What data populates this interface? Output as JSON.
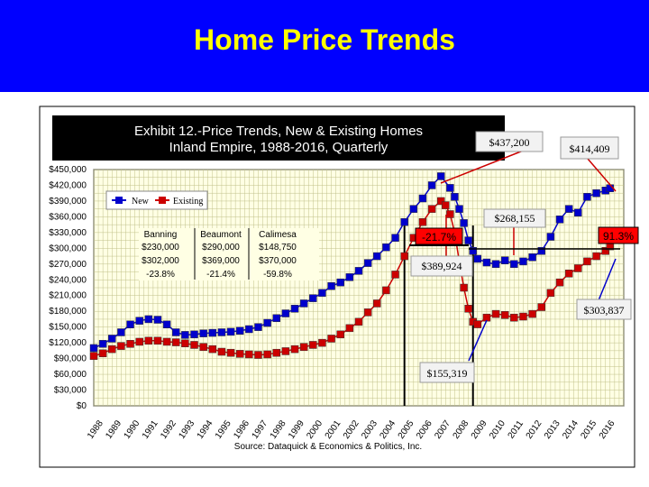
{
  "slide_title": "Home Price Trends",
  "colors": {
    "banner": "#0000ff",
    "title": "#ffff00",
    "new_series": "#0000cc",
    "existing_series": "#cc0000",
    "gridlines": "#b8b880"
  },
  "chart_data": {
    "type": "line",
    "title": "Exhibit 12.-Price Trends, New & Existing Homes",
    "subtitle": "Inland Empire, 1988-2016, Quarterly",
    "source": "Source: Dataquick & Economics & Politics, Inc.",
    "ylim": [
      0,
      450000
    ],
    "y_ticks": [
      {
        "value": 0,
        "label": "$0"
      },
      {
        "value": 30000,
        "label": "$30,000"
      },
      {
        "value": 60000,
        "label": "$60,000"
      },
      {
        "value": 90000,
        "label": "$90,000"
      },
      {
        "value": 120000,
        "label": "$120,000"
      },
      {
        "value": 150000,
        "label": "$150,000"
      },
      {
        "value": 180000,
        "label": "$180,000"
      },
      {
        "value": 210000,
        "label": "$210,000"
      },
      {
        "value": 240000,
        "label": "$240,000"
      },
      {
        "value": 270000,
        "label": "$270,000"
      },
      {
        "value": 300000,
        "label": "$300,000"
      },
      {
        "value": 330000,
        "label": "$330,000"
      },
      {
        "value": 360000,
        "label": "$360,000"
      },
      {
        "value": 390000,
        "label": "$390,000"
      },
      {
        "value": 420000,
        "label": "$420,000"
      },
      {
        "value": 450000,
        "label": "$450,000"
      }
    ],
    "xlim": [
      1988,
      2017
    ],
    "x_ticks": [
      "1988",
      "1989",
      "1990",
      "1991",
      "1992",
      "1993",
      "1994",
      "1995",
      "1996",
      "1997",
      "1998",
      "1999",
      "2000",
      "2001",
      "2002",
      "2003",
      "2004",
      "2005",
      "2006",
      "2007",
      "2008",
      "2009",
      "2010",
      "2011",
      "2012",
      "2013",
      "2014",
      "2015",
      "2016"
    ],
    "legend": {
      "placement": "top-left",
      "entries": [
        "New",
        "Existing"
      ]
    },
    "series": [
      {
        "name": "New",
        "color": "#0000cc",
        "points": [
          [
            1988.0,
            110000
          ],
          [
            1988.5,
            118000
          ],
          [
            1989.0,
            128000
          ],
          [
            1989.5,
            140000
          ],
          [
            1990.0,
            155000
          ],
          [
            1990.5,
            162000
          ],
          [
            1991.0,
            165000
          ],
          [
            1991.5,
            164000
          ],
          [
            1992.0,
            155000
          ],
          [
            1992.5,
            140000
          ],
          [
            1993.0,
            135000
          ],
          [
            1993.5,
            136000
          ],
          [
            1994.0,
            138000
          ],
          [
            1994.5,
            139000
          ],
          [
            1995.0,
            140000
          ],
          [
            1995.5,
            141000
          ],
          [
            1996.0,
            143000
          ],
          [
            1996.5,
            146000
          ],
          [
            1997.0,
            150000
          ],
          [
            1997.5,
            158000
          ],
          [
            1998.0,
            167000
          ],
          [
            1998.5,
            176000
          ],
          [
            1999.0,
            185000
          ],
          [
            1999.5,
            195000
          ],
          [
            2000.0,
            205000
          ],
          [
            2000.5,
            215000
          ],
          [
            2001.0,
            228000
          ],
          [
            2001.5,
            235000
          ],
          [
            2002.0,
            245000
          ],
          [
            2002.5,
            257000
          ],
          [
            2003.0,
            272000
          ],
          [
            2003.5,
            285000
          ],
          [
            2004.0,
            302000
          ],
          [
            2004.5,
            320000
          ],
          [
            2005.0,
            350000
          ],
          [
            2005.5,
            375000
          ],
          [
            2006.0,
            395000
          ],
          [
            2006.5,
            420000
          ],
          [
            2007.0,
            437200
          ],
          [
            2007.5,
            415000
          ],
          [
            2007.75,
            398000
          ],
          [
            2008.0,
            375000
          ],
          [
            2008.25,
            348000
          ],
          [
            2008.5,
            315000
          ],
          [
            2008.75,
            295000
          ],
          [
            2009.0,
            280000
          ],
          [
            2009.5,
            273000
          ],
          [
            2010.0,
            270000
          ],
          [
            2010.5,
            277000
          ],
          [
            2011.0,
            270000
          ],
          [
            2011.5,
            275000
          ],
          [
            2012.0,
            283000
          ],
          [
            2012.5,
            295000
          ],
          [
            2013.0,
            322000
          ],
          [
            2013.5,
            355000
          ],
          [
            2014.0,
            375000
          ],
          [
            2014.5,
            368000
          ],
          [
            2015.0,
            398000
          ],
          [
            2015.5,
            405000
          ],
          [
            2016.0,
            410000
          ],
          [
            2016.25,
            414409
          ]
        ]
      },
      {
        "name": "Existing",
        "color": "#cc0000",
        "points": [
          [
            1988.0,
            95000
          ],
          [
            1988.5,
            100000
          ],
          [
            1989.0,
            108000
          ],
          [
            1989.5,
            114000
          ],
          [
            1990.0,
            118000
          ],
          [
            1990.5,
            122000
          ],
          [
            1991.0,
            124000
          ],
          [
            1991.5,
            124000
          ],
          [
            1992.0,
            122000
          ],
          [
            1992.5,
            121000
          ],
          [
            1993.0,
            119000
          ],
          [
            1993.5,
            116000
          ],
          [
            1994.0,
            112000
          ],
          [
            1994.5,
            108000
          ],
          [
            1995.0,
            103000
          ],
          [
            1995.5,
            101000
          ],
          [
            1996.0,
            99000
          ],
          [
            1996.5,
            98000
          ],
          [
            1997.0,
            97000
          ],
          [
            1997.5,
            98000
          ],
          [
            1998.0,
            101000
          ],
          [
            1998.5,
            104000
          ],
          [
            1999.0,
            108000
          ],
          [
            1999.5,
            112000
          ],
          [
            2000.0,
            116000
          ],
          [
            2000.5,
            120000
          ],
          [
            2001.0,
            128000
          ],
          [
            2001.5,
            136000
          ],
          [
            2002.0,
            148000
          ],
          [
            2002.5,
            160000
          ],
          [
            2003.0,
            178000
          ],
          [
            2003.5,
            195000
          ],
          [
            2004.0,
            220000
          ],
          [
            2004.5,
            250000
          ],
          [
            2005.0,
            285000
          ],
          [
            2005.5,
            320000
          ],
          [
            2006.0,
            350000
          ],
          [
            2006.5,
            375000
          ],
          [
            2007.0,
            389924
          ],
          [
            2007.25,
            382000
          ],
          [
            2007.5,
            365000
          ],
          [
            2007.75,
            330000
          ],
          [
            2008.0,
            275000
          ],
          [
            2008.25,
            225000
          ],
          [
            2008.5,
            185000
          ],
          [
            2008.75,
            160000
          ],
          [
            2009.0,
            155319
          ],
          [
            2009.5,
            168000
          ],
          [
            2010.0,
            175000
          ],
          [
            2010.5,
            173000
          ],
          [
            2011.0,
            168000
          ],
          [
            2011.5,
            170000
          ],
          [
            2012.0,
            175000
          ],
          [
            2012.5,
            188000
          ],
          [
            2013.0,
            215000
          ],
          [
            2013.5,
            235000
          ],
          [
            2014.0,
            252000
          ],
          [
            2014.5,
            262000
          ],
          [
            2015.0,
            275000
          ],
          [
            2015.5,
            285000
          ],
          [
            2016.0,
            295000
          ],
          [
            2016.25,
            303837
          ]
        ]
      }
    ],
    "markers": [
      2005.0,
      2008.75
    ],
    "annotations": [
      {
        "id": "peak_new",
        "text": "$437,200",
        "at": [
          2007.0,
          437200
        ]
      },
      {
        "id": "new_2016",
        "text": "$414,409",
        "at": [
          2016.25,
          414409
        ]
      },
      {
        "id": "new_low",
        "text": "$268,155",
        "at": [
          2011.5,
          275000
        ]
      },
      {
        "id": "existing_peak",
        "text": "$389,924",
        "at": [
          2007.0,
          389924
        ]
      },
      {
        "id": "existing_low",
        "text": "$155,319",
        "at": [
          2009.0,
          155319
        ]
      },
      {
        "id": "existing_2016",
        "text": "$303,837",
        "at": [
          2016.25,
          303837
        ]
      },
      {
        "id": "pct_decline",
        "text": "-21.7%"
      },
      {
        "id": "pct_gain",
        "text": "91.3%"
      }
    ],
    "table": {
      "headers": [
        "Banning",
        "Beaumont",
        "Calimesa"
      ],
      "rows": [
        [
          "$230,000",
          "$290,000",
          "$148,750"
        ],
        [
          "$302,000",
          "$369,000",
          "$370,000"
        ],
        [
          "-23.8%",
          "-21.4%",
          "-59.8%"
        ]
      ]
    }
  }
}
